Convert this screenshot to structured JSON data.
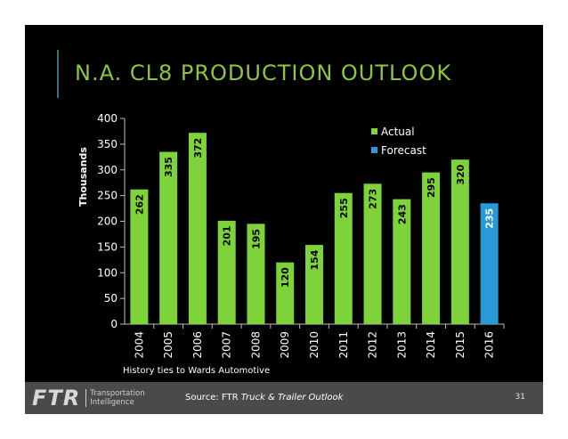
{
  "slide": {
    "title": "N.A. CL8 PRODUCTION OUTLOOK",
    "history_note": "History ties to Wards Automotive",
    "source_prefix": "Source: FTR ",
    "source_italic": "Truck & Trailer Outlook",
    "page_number": "31",
    "logo_text": "FTR",
    "logo_sub_line1": "Transportation",
    "logo_sub_line2": "Intelligence"
  },
  "colors": {
    "background": "#000000",
    "title": "#8cc63f",
    "actual": "#7ed33b",
    "forecast": "#2a9ad6",
    "footer": "#4a4a4a"
  },
  "chart_data": {
    "type": "bar",
    "categories": [
      "2004",
      "2005",
      "2006",
      "2007",
      "2008",
      "2009",
      "2010",
      "2011",
      "2012",
      "2013",
      "2014",
      "2015",
      "2016"
    ],
    "series": [
      {
        "name": "Actual",
        "values": [
          262,
          335,
          372,
          201,
          195,
          120,
          154,
          255,
          273,
          243,
          295,
          320,
          null
        ]
      },
      {
        "name": "Forecast",
        "values": [
          null,
          null,
          null,
          null,
          null,
          null,
          null,
          null,
          null,
          null,
          null,
          null,
          235
        ]
      }
    ],
    "data_labels": [
      "262",
      "335",
      "372",
      "201",
      "195",
      "120",
      "154",
      "255",
      "273",
      "243",
      "295",
      "320",
      "235"
    ],
    "ylabel": "Thousands",
    "ylim": [
      0,
      400
    ],
    "yticks": [
      0,
      50,
      100,
      150,
      200,
      250,
      300,
      350,
      400
    ],
    "grid": false,
    "legend": {
      "placement": "top-right",
      "entries": [
        "Actual",
        "Forecast"
      ]
    }
  }
}
